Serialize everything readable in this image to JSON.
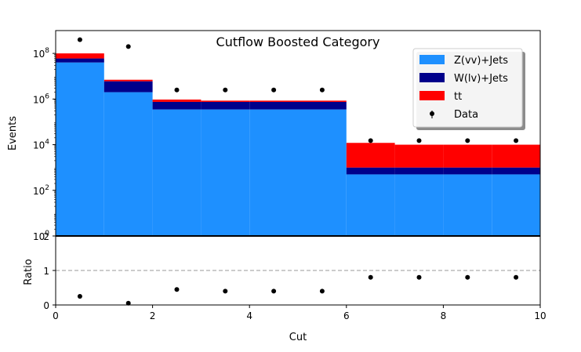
{
  "chart_data": [
    {
      "panel": "main",
      "type": "bar",
      "stacked": true,
      "title": "Cutflow Boosted Category",
      "ylabel": "Events",
      "yscale": "log",
      "ylim": [
        1,
        1000000000
      ],
      "xlim": [
        0,
        10
      ],
      "yticks": [
        "10^0",
        "10^2",
        "10^4",
        "10^6",
        "10^8"
      ],
      "legend_position": "upper right",
      "bins": [
        [
          0,
          1
        ],
        [
          1,
          2
        ],
        [
          2,
          3
        ],
        [
          3,
          4
        ],
        [
          4,
          5
        ],
        [
          5,
          6
        ],
        [
          6,
          7
        ],
        [
          7,
          8
        ],
        [
          8,
          9
        ],
        [
          9,
          10
        ]
      ],
      "series": [
        {
          "name": "Z(vv)+Jets",
          "color": "#1e90ff",
          "values": [
            40000000,
            2000000,
            350000,
            350000,
            350000,
            350000,
            500,
            500,
            500,
            500
          ]
        },
        {
          "name": "W(lv)+Jets",
          "color": "#00008b",
          "values": [
            20000000,
            4000000,
            400000,
            400000,
            400000,
            400000,
            500,
            500,
            500,
            500
          ]
        },
        {
          "name": "tt",
          "color": "#ff0000",
          "values": [
            40000000,
            1000000,
            200000,
            100000,
            100000,
            100000,
            11000,
            9000,
            9000,
            9000
          ]
        }
      ],
      "data_series": {
        "name": "Data",
        "color": "#000000",
        "x": [
          0.5,
          1.5,
          2.5,
          3.5,
          4.5,
          5.5,
          6.5,
          7.5,
          8.5,
          9.5
        ],
        "values": [
          400000000,
          200000000,
          2500000,
          2500000,
          2500000,
          2500000,
          15000,
          15000,
          15000,
          15000
        ]
      }
    },
    {
      "panel": "ratio",
      "type": "scatter",
      "xlabel": "Cut",
      "ylabel": "Ratio",
      "ylim": [
        0,
        2
      ],
      "xlim": [
        0,
        10
      ],
      "xticks": [
        "0",
        "2",
        "4",
        "6",
        "8",
        "10"
      ],
      "yticks": [
        "0",
        "1"
      ],
      "yticks_overlap_label": "2",
      "reference_line": 1,
      "x": [
        0.5,
        1.5,
        2.5,
        3.5,
        4.5,
        5.5,
        6.5,
        7.5,
        8.5,
        9.5
      ],
      "values": [
        0.25,
        0.05,
        0.45,
        0.4,
        0.4,
        0.4,
        0.8,
        0.8,
        0.8,
        0.8
      ]
    }
  ]
}
